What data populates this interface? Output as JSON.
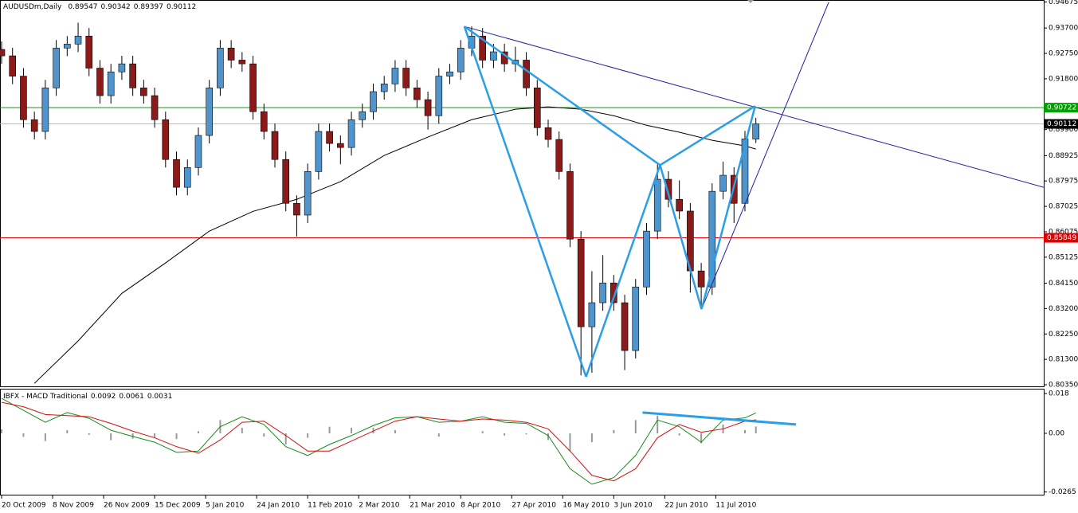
{
  "chart_data": [
    {
      "type": "candlestick",
      "symbol": "AUDUSDm,Daily",
      "up_color": "#4f94cd",
      "down_color": "#8b1a1a",
      "xlim": [
        0,
        286
      ],
      "ylim": [
        0.8035,
        0.94675
      ],
      "xticks": [
        {
          "value": 0,
          "label": "20 Oct 2009"
        },
        {
          "value": 14,
          "label": "8 Nov 2009"
        },
        {
          "value": 28,
          "label": "26 Nov 2009"
        },
        {
          "value": 42,
          "label": "15 Dec 2009"
        },
        {
          "value": 56,
          "label": "5 Jan 2010"
        },
        {
          "value": 70,
          "label": "24 Jan 2010"
        },
        {
          "value": 84,
          "label": "11 Feb 2010"
        },
        {
          "value": 98,
          "label": "2 Mar 2010"
        },
        {
          "value": 112,
          "label": "21 Mar 2010"
        },
        {
          "value": 126,
          "label": "8 Apr 2010"
        },
        {
          "value": 140,
          "label": "27 Apr 2010"
        },
        {
          "value": 154,
          "label": "16 May 2010"
        },
        {
          "value": 168,
          "label": "3 Jun 2010"
        },
        {
          "value": 182,
          "label": "22 Jun 2010"
        },
        {
          "value": 196,
          "label": "11 Jul 2010"
        }
      ],
      "yticks": [
        0.94675,
        {
          "value": 0.937,
          "label": "0.93700"
        },
        {
          "value": 0.9275,
          "label": "0.92750"
        },
        {
          "value": 0.918,
          "label": "0.91800"
        },
        {
          "value": 0.899,
          "label": "0.89900"
        },
        0.88925,
        0.87975,
        0.87025,
        0.86075,
        0.85125,
        {
          "value": 0.8415,
          "label": "0.84150"
        },
        {
          "value": 0.832,
          "label": "0.83200"
        },
        {
          "value": 0.8225,
          "label": "0.82250"
        },
        {
          "value": 0.813,
          "label": "0.81300"
        },
        {
          "value": 0.8035,
          "label": "0.80350"
        }
      ],
      "levels": [
        {
          "value": 0.90722,
          "color": "#00a000"
        },
        {
          "value": 0.85849,
          "color": "#e00000"
        }
      ],
      "candles": {
        "x": [
          0,
          3,
          6,
          9,
          12,
          15,
          18,
          21,
          24,
          27,
          30,
          33,
          36,
          39,
          42,
          45,
          48,
          51,
          54,
          57,
          60,
          63,
          66,
          69,
          72,
          75,
          78,
          81,
          84,
          87,
          90,
          93,
          96,
          99,
          102,
          105,
          108,
          111,
          114,
          117,
          120,
          123,
          126,
          129,
          132,
          135,
          138,
          141,
          144,
          147,
          150,
          153,
          156,
          159,
          162,
          165,
          168,
          171,
          174,
          177,
          180,
          183,
          186,
          189,
          192,
          195,
          198,
          201,
          204,
          207
        ],
        "open": [
          0.929,
          0.9266,
          0.919,
          0.9027,
          0.8983,
          0.9146,
          0.9295,
          0.931,
          0.934,
          0.922,
          0.9117,
          0.9206,
          0.9236,
          0.9146,
          0.9117,
          0.9027,
          0.8878,
          0.8774,
          0.8848,
          0.8968,
          0.9146,
          0.9295,
          0.925,
          0.9236,
          0.9057,
          0.8983,
          0.8878,
          0.8714,
          0.867,
          0.8833,
          0.8983,
          0.8938,
          0.8923,
          0.9027,
          0.9057,
          0.9132,
          0.9161,
          0.922,
          0.9146,
          0.9102,
          0.9042,
          0.919,
          0.9206,
          0.9295,
          0.934,
          0.925,
          0.9281,
          0.9236,
          0.925,
          0.9146,
          0.8997,
          0.8953,
          0.8833,
          0.858,
          0.8252,
          0.8342,
          0.8416,
          0.8342,
          0.8163,
          0.8401,
          0.861,
          0.8804,
          0.8729,
          0.8685,
          0.8461,
          0.8401,
          0.8759,
          0.8819,
          0.8714,
          0.89547
        ],
        "high": [
          0.932,
          0.9296,
          0.922,
          0.9057,
          0.9176,
          0.9325,
          0.934,
          0.939,
          0.937,
          0.925,
          0.9236,
          0.9266,
          0.9266,
          0.9176,
          0.9147,
          0.9057,
          0.8908,
          0.8878,
          0.8998,
          0.9176,
          0.9325,
          0.9325,
          0.928,
          0.9266,
          0.9087,
          0.9013,
          0.8908,
          0.8744,
          0.8863,
          0.9013,
          0.9013,
          0.8968,
          0.9057,
          0.9087,
          0.9162,
          0.9191,
          0.925,
          0.925,
          0.9176,
          0.9132,
          0.922,
          0.9236,
          0.9325,
          0.9376,
          0.937,
          0.9311,
          0.9311,
          0.93,
          0.928,
          0.9176,
          0.9027,
          0.8983,
          0.8863,
          0.861,
          0.846,
          0.852,
          0.8446,
          0.8372,
          0.8431,
          0.864,
          0.886,
          0.8834,
          0.88,
          0.8715,
          0.8491,
          0.8789,
          0.887,
          0.8849,
          0.8985,
          0.90342
        ],
        "low": [
          0.9236,
          0.916,
          0.8997,
          0.8953,
          0.8953,
          0.9116,
          0.9265,
          0.928,
          0.919,
          0.9087,
          0.9087,
          0.9176,
          0.9116,
          0.9087,
          0.8997,
          0.8848,
          0.8744,
          0.8744,
          0.8818,
          0.8938,
          0.9116,
          0.922,
          0.9206,
          0.9027,
          0.8953,
          0.8848,
          0.8684,
          0.859,
          0.864,
          0.8803,
          0.8908,
          0.886,
          0.8893,
          0.8997,
          0.9027,
          0.9102,
          0.9131,
          0.9116,
          0.9072,
          0.899,
          0.9012,
          0.916,
          0.9176,
          0.9265,
          0.922,
          0.922,
          0.9206,
          0.9206,
          0.9116,
          0.8967,
          0.8923,
          0.8803,
          0.855,
          0.807,
          0.808,
          0.8312,
          0.8312,
          0.809,
          0.8133,
          0.8371,
          0.858,
          0.8699,
          0.8655,
          0.838,
          0.8318,
          0.8371,
          0.8729,
          0.864,
          0.8684,
          0.89397
        ],
        "close": [
          0.9266,
          0.919,
          0.9027,
          0.8983,
          0.9146,
          0.9295,
          0.931,
          0.934,
          0.922,
          0.9117,
          0.9206,
          0.9236,
          0.9146,
          0.9117,
          0.9027,
          0.8878,
          0.8774,
          0.8848,
          0.8968,
          0.9146,
          0.9295,
          0.925,
          0.9236,
          0.9057,
          0.8983,
          0.8878,
          0.8714,
          0.867,
          0.8833,
          0.8983,
          0.8938,
          0.8923,
          0.9027,
          0.9057,
          0.9132,
          0.9161,
          0.922,
          0.9146,
          0.9102,
          0.9042,
          0.919,
          0.9206,
          0.9295,
          0.934,
          0.925,
          0.9281,
          0.9236,
          0.925,
          0.9146,
          0.8997,
          0.8953,
          0.8833,
          0.858,
          0.8252,
          0.8342,
          0.8416,
          0.8342,
          0.8163,
          0.8401,
          0.861,
          0.8804,
          0.8729,
          0.8685,
          0.8461,
          0.8401,
          0.8759,
          0.8819,
          0.8714,
          0.8955,
          0.90112
        ]
      },
      "moving_average": {
        "color": "#000000",
        "x": [
          9,
          21,
          33,
          45,
          57,
          69,
          81,
          93,
          105,
          117,
          129,
          141,
          150,
          159,
          168,
          177,
          186,
          195,
          204,
          207
        ],
        "values": [
          0.804,
          0.8199,
          0.8377,
          0.8491,
          0.861,
          0.8684,
          0.8729,
          0.8795,
          0.8893,
          0.8962,
          0.9027,
          0.9066,
          0.9075,
          0.9066,
          0.9042,
          0.9006,
          0.898,
          0.895,
          0.8929,
          0.8917
        ]
      },
      "pattern": {
        "color": "#2a9ee6",
        "x": [
          127,
          160.4,
          180.7,
          192.1,
          206.8
        ],
        "y": [
          0.9376,
          0.8065,
          0.8857,
          0.8318,
          0.9078
        ]
      },
      "trendlines": [
        {
          "color": "#1e1ea0",
          "x": [
            127,
            286
          ],
          "y": [
            0.9376,
            0.8774
          ]
        },
        {
          "color": "#1e1ea0",
          "x": [
            192.1,
            227
          ],
          "y": [
            0.8318,
            0.9467
          ]
        }
      ]
    },
    {
      "type": "macd",
      "title": "IBFX - MACD Traditional",
      "xlim": [
        0,
        286
      ],
      "ylim": [
        -0.0265,
        0.018
      ],
      "yticks": [
        0.018,
        {
          "value": 0,
          "label": "0.00"
        },
        -0.0265
      ],
      "x": [
        0,
        6,
        12,
        18,
        24,
        30,
        36,
        42,
        48,
        54,
        60,
        66,
        72,
        78,
        84,
        90,
        96,
        102,
        108,
        114,
        120,
        126,
        132,
        138,
        144,
        150,
        156,
        162,
        168,
        174,
        180,
        186,
        192,
        198,
        204,
        207
      ],
      "series": [
        {
          "name": "MACD",
          "color": "#1a8a1a",
          "values": [
            0.0158,
            0.0104,
            0.005,
            0.0094,
            0.0068,
            0.0014,
            -0.0014,
            -0.004,
            -0.0086,
            -0.008,
            0.003,
            0.0075,
            0.004,
            -0.006,
            -0.01,
            -0.005,
            -0.001,
            0.0035,
            0.007,
            0.0075,
            0.005,
            0.0055,
            0.0075,
            0.005,
            0.0045,
            -0.001,
            -0.016,
            -0.023,
            -0.02,
            -0.01,
            0.006,
            0.003,
            -0.004,
            0.006,
            0.007,
            0.0092
          ]
        },
        {
          "name": "Signal",
          "color": "#d01010",
          "values": [
            0.014,
            0.012,
            0.0085,
            0.008,
            0.0075,
            0.0045,
            0.001,
            -0.002,
            -0.006,
            -0.009,
            -0.003,
            0.005,
            0.0055,
            -0.001,
            -0.008,
            -0.008,
            -0.0035,
            0.001,
            0.0055,
            0.0075,
            0.0065,
            0.0055,
            0.0065,
            0.006,
            0.005,
            0.002,
            -0.008,
            -0.019,
            -0.0215,
            -0.016,
            -0.002,
            0.004,
            0.0005,
            0.002,
            0.0055,
            0.0061
          ]
        },
        {
          "name": "Histogram",
          "color": "#999999",
          "values": [
            0.0018,
            -0.0016,
            -0.0035,
            0.0014,
            -0.0007,
            -0.0031,
            -0.0024,
            -0.002,
            -0.0026,
            0.001,
            0.006,
            0.0025,
            -0.0015,
            -0.005,
            -0.002,
            0.003,
            0.0025,
            0.0025,
            0.0015,
            0,
            -0.0015,
            0,
            0.001,
            -0.001,
            -0.0005,
            -0.003,
            -0.008,
            -0.004,
            0.0015,
            0.006,
            0.008,
            -0.001,
            -0.0045,
            0.004,
            0.0015,
            0.0031
          ]
        }
      ],
      "trendline": {
        "color": "#2a9ee6",
        "x": [
          175.9,
          218
        ],
        "y": [
          0.0094,
          0.004
        ]
      }
    }
  ]
}
